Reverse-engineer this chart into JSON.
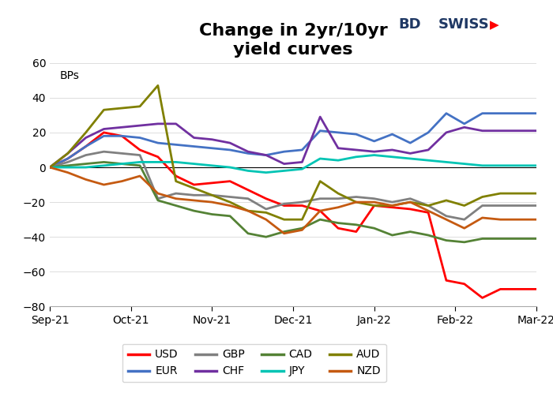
{
  "title": "Change in 2yr/10yr\nyield curves",
  "ylabel": "BPs",
  "ylim": [
    -80,
    60
  ],
  "yticks": [
    -80,
    -60,
    -40,
    -20,
    0,
    20,
    40,
    60
  ],
  "x_labels": [
    "Sep-21",
    "Oct-21",
    "Nov-21",
    "Dec-21",
    "Jan-22",
    "Feb-22",
    "Mar-22"
  ],
  "n_points": 28,
  "series": {
    "USD": {
      "color": "#FF0000",
      "data": [
        0,
        5,
        12,
        20,
        18,
        10,
        6,
        -5,
        -10,
        -9,
        -8,
        -13,
        -18,
        -22,
        -22,
        -25,
        -35,
        -37,
        -22,
        -23,
        -24,
        -26,
        -65,
        -67,
        -75,
        -70,
        -70,
        -70
      ]
    },
    "EUR": {
      "color": "#4472C4",
      "data": [
        0,
        5,
        12,
        18,
        18,
        17,
        14,
        13,
        12,
        11,
        10,
        8,
        7,
        9,
        10,
        21,
        20,
        19,
        15,
        19,
        14,
        20,
        31,
        25,
        31,
        31,
        31,
        31
      ]
    },
    "GBP": {
      "color": "#808080",
      "data": [
        0,
        3,
        7,
        9,
        8,
        7,
        -18,
        -15,
        -16,
        -16,
        -17,
        -18,
        -24,
        -21,
        -20,
        -18,
        -18,
        -17,
        -18,
        -20,
        -18,
        -22,
        -28,
        -30,
        -22,
        -22,
        -22,
        -22
      ]
    },
    "CHF": {
      "color": "#7030A0",
      "data": [
        0,
        8,
        17,
        22,
        23,
        24,
        25,
        25,
        17,
        16,
        14,
        9,
        7,
        2,
        3,
        29,
        11,
        10,
        9,
        10,
        8,
        10,
        20,
        23,
        21,
        21,
        21,
        21
      ]
    },
    "CAD": {
      "color": "#548235",
      "data": [
        0,
        1,
        2,
        3,
        2,
        1,
        -19,
        -22,
        -25,
        -27,
        -28,
        -38,
        -40,
        -37,
        -35,
        -30,
        -32,
        -33,
        -35,
        -39,
        -37,
        -39,
        -42,
        -43,
        -41,
        -41,
        -41,
        -41
      ]
    },
    "JPY": {
      "color": "#00C4B4",
      "data": [
        0,
        0,
        0,
        1,
        2,
        3,
        3,
        3,
        2,
        1,
        0,
        -2,
        -3,
        -2,
        -1,
        5,
        4,
        6,
        7,
        6,
        5,
        4,
        3,
        2,
        1,
        1,
        1,
        1
      ]
    },
    "AUD": {
      "color": "#808000",
      "data": [
        0,
        8,
        20,
        33,
        34,
        35,
        47,
        -8,
        -12,
        -16,
        -20,
        -25,
        -26,
        -30,
        -30,
        -8,
        -15,
        -20,
        -22,
        -22,
        -20,
        -22,
        -19,
        -22,
        -17,
        -15,
        -15,
        -15
      ]
    },
    "NZD": {
      "color": "#C55A11",
      "data": [
        0,
        -3,
        -7,
        -10,
        -8,
        -5,
        -15,
        -18,
        -19,
        -20,
        -22,
        -25,
        -30,
        -38,
        -36,
        -25,
        -23,
        -20,
        -20,
        -22,
        -20,
        -25,
        -30,
        -35,
        -29,
        -30,
        -30,
        -30
      ]
    }
  },
  "background_color": "#FFFFFF",
  "legend_order": [
    "USD",
    "EUR",
    "GBP",
    "CHF",
    "CAD",
    "JPY",
    "AUD",
    "NZD"
  ],
  "title_fontsize": 16,
  "label_fontsize": 10,
  "line_width": 2.0
}
